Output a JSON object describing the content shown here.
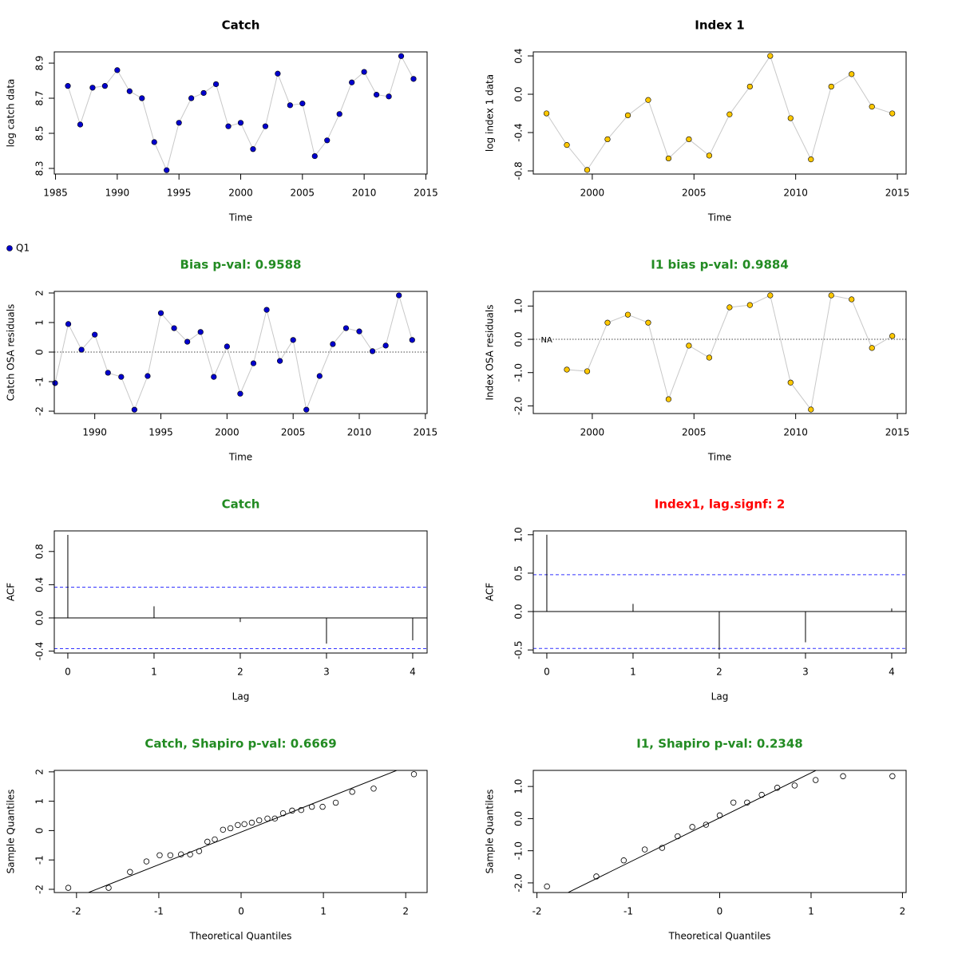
{
  "chart_data": [
    {
      "type": "line",
      "title": "Catch",
      "title_color": "#000000",
      "x_label": "Time",
      "y_label": "log catch data",
      "legend": "Q1",
      "color": "#0000cd",
      "x": [
        1986,
        1987,
        1988,
        1989,
        1990,
        1991,
        1992,
        1993,
        1994,
        1995,
        1996,
        1997,
        1998,
        1999,
        2000,
        2001,
        2002,
        2003,
        2004,
        2005,
        2006,
        2007,
        2008,
        2009,
        2010,
        2011,
        2012,
        2013,
        2014
      ],
      "values": [
        8.77,
        8.55,
        8.76,
        8.77,
        8.86,
        8.74,
        8.7,
        8.45,
        8.29,
        8.56,
        8.7,
        8.73,
        8.78,
        8.54,
        8.56,
        8.41,
        8.54,
        8.84,
        8.66,
        8.67,
        8.37,
        8.46,
        8.61,
        8.79,
        8.85,
        8.72,
        8.71,
        8.94,
        8.81
      ],
      "xlim": [
        1984.9,
        2015.1
      ],
      "ylim": [
        8.268,
        8.964
      ],
      "xticks": [
        1985,
        1990,
        1995,
        2000,
        2005,
        2010,
        2015
      ],
      "yticks": [
        8.3,
        8.5,
        8.7,
        8.9
      ]
    },
    {
      "type": "line",
      "title": "Index 1",
      "title_color": "#000000",
      "x_label": "Time",
      "y_label": "log index 1 data",
      "color": "#ffc800",
      "x": [
        1997.75,
        1998.75,
        1999.75,
        2000.75,
        2001.75,
        2002.75,
        2003.75,
        2004.75,
        2005.75,
        2006.75,
        2007.75,
        2008.75,
        2009.75,
        2010.75,
        2011.75,
        2012.75,
        2013.75,
        2014.75
      ],
      "values": [
        -0.2,
        -0.53,
        -0.79,
        -0.47,
        -0.22,
        -0.06,
        -0.67,
        -0.47,
        -0.64,
        -0.21,
        0.08,
        0.4,
        -0.25,
        -0.68,
        0.08,
        0.21,
        -0.13,
        -0.2
      ],
      "xlim": [
        1997.1,
        2015.43
      ],
      "ylim": [
        -0.833,
        0.442
      ],
      "xticks": [
        2000,
        2005,
        2010,
        2015
      ],
      "yticks": [
        -0.8,
        -0.4,
        {
          "value": 0,
          "label": "0.0"
        },
        0.4
      ]
    },
    {
      "type": "line",
      "title": "Bias p-val: 0.9588",
      "title_color": "#228b22",
      "x_label": "Time",
      "y_label": "Catch OSA residuals",
      "color": "#0000cd",
      "ref_line": 0,
      "x": [
        1987,
        1988,
        1989,
        1990,
        1991,
        1992,
        1993,
        1994,
        1995,
        1996,
        1997,
        1998,
        1999,
        2000,
        2001,
        2002,
        2003,
        2004,
        2005,
        2006,
        2007,
        2008,
        2009,
        2010,
        2011,
        2012,
        2013,
        2014
      ],
      "values": [
        -1.05,
        0.95,
        0.08,
        0.59,
        -0.7,
        -0.84,
        -1.95,
        -0.81,
        1.32,
        0.81,
        0.35,
        0.68,
        -0.84,
        0.19,
        -1.41,
        -0.38,
        1.43,
        -0.3,
        0.41,
        -1.95,
        -0.81,
        0.27,
        0.81,
        0.7,
        0.03,
        0.22,
        1.92,
        0.41
      ],
      "xlim": [
        1986.94,
        2015.13
      ],
      "ylim": [
        -2.08,
        2.054
      ],
      "xticks": [
        1990,
        1995,
        2000,
        2005,
        2010,
        2015
      ],
      "yticks": [
        -2,
        -1,
        0,
        1,
        2
      ]
    },
    {
      "type": "line",
      "title": "I1 bias p-val: 0.9884",
      "title_color": "#228b22",
      "x_label": "Time",
      "y_label": "Index OSA residuals",
      "color": "#ffc800",
      "ref_line": 0,
      "na_label": "NA",
      "x": [
        1997.75,
        1998.75,
        1999.75,
        2000.75,
        2001.75,
        2002.75,
        2003.75,
        2004.75,
        2005.75,
        2006.75,
        2007.75,
        2008.75,
        2009.75,
        2010.75,
        2011.75,
        2012.75,
        2013.75,
        2014.75
      ],
      "values": [
        null,
        -0.91,
        -0.96,
        0.5,
        0.74,
        0.5,
        -1.8,
        -0.19,
        -0.55,
        0.96,
        1.03,
        1.32,
        -1.3,
        -2.11,
        1.32,
        1.2,
        -0.26,
        0.1
      ],
      "xlim": [
        1997.1,
        2015.43
      ],
      "ylim": [
        -2.23,
        1.44
      ],
      "xticks": [
        2000,
        2005,
        2010,
        2015
      ],
      "yticks": [
        {
          "value": -2,
          "label": "-2.0"
        },
        {
          "value": -1,
          "label": "-1.0"
        },
        {
          "value": 0,
          "label": "0.0"
        },
        {
          "value": 1,
          "label": "1.0"
        }
      ]
    },
    {
      "type": "acf",
      "title": "Catch",
      "title_color": "#228b22",
      "x_label": "Lag",
      "y_label": "ACF",
      "conf_limit": 0.37,
      "x": [
        0,
        1,
        2,
        3,
        4
      ],
      "values": [
        1.0,
        0.14,
        -0.05,
        -0.31,
        -0.27
      ],
      "xlim": [
        -0.157,
        4.167
      ],
      "ylim": [
        -0.423,
        1.048
      ],
      "xticks": [
        0,
        1,
        2,
        3,
        4
      ],
      "yticks": [
        -0.4,
        {
          "value": 0,
          "label": "0.0"
        },
        0.4,
        0.8
      ]
    },
    {
      "type": "acf",
      "title": "Index1, lag.signf: 2",
      "title_color": "#ff0000",
      "x_label": "Lag",
      "y_label": "ACF",
      "conf_limit": 0.48,
      "x": [
        0,
        1,
        2,
        3,
        4
      ],
      "values": [
        1.0,
        0.1,
        -0.5,
        -0.4,
        0.04
      ],
      "xlim": [
        -0.157,
        4.167
      ],
      "ylim": [
        -0.54,
        1.05
      ],
      "xticks": [
        0,
        1,
        2,
        3,
        4
      ],
      "yticks": [
        -0.5,
        {
          "value": 0,
          "label": "0.0"
        },
        0.5,
        {
          "value": 1,
          "label": "1.0"
        }
      ]
    },
    {
      "type": "qq",
      "title": "Catch, Shapiro p-val: 0.6669",
      "title_color": "#228b22",
      "x_label": "Theoretical Quantiles",
      "y_label": "Sample Quantiles",
      "x": [
        -2.1,
        -1.61,
        -1.35,
        -1.15,
        -0.99,
        -0.86,
        -0.73,
        -0.62,
        -0.51,
        -0.41,
        -0.32,
        -0.22,
        -0.13,
        -0.04,
        0.04,
        0.13,
        0.22,
        0.32,
        0.41,
        0.51,
        0.62,
        0.73,
        0.86,
        0.99,
        1.15,
        1.35,
        1.61,
        2.1
      ],
      "values": [
        -1.95,
        -1.95,
        -1.41,
        -1.05,
        -0.84,
        -0.84,
        -0.81,
        -0.81,
        -0.7,
        -0.38,
        -0.3,
        0.03,
        0.08,
        0.19,
        0.22,
        0.27,
        0.35,
        0.41,
        0.41,
        0.59,
        0.68,
        0.7,
        0.81,
        0.81,
        0.95,
        1.32,
        1.43,
        1.92
      ],
      "qq_line": {
        "slope": 1.11,
        "intercept": -0.05
      },
      "xlim": [
        -2.27,
        2.26
      ],
      "ylim": [
        -2.11,
        2.05
      ],
      "xticks": [
        -2,
        -1,
        0,
        1,
        2
      ],
      "yticks": [
        -2,
        -1,
        0,
        1,
        2
      ]
    },
    {
      "type": "qq",
      "title": "I1, Shapiro p-val: 0.2348",
      "title_color": "#228b22",
      "x_label": "Theoretical Quantiles",
      "y_label": "Sample Quantiles",
      "x": [
        -1.89,
        -1.35,
        -1.05,
        -0.82,
        -0.63,
        -0.46,
        -0.3,
        -0.15,
        0,
        0.15,
        0.3,
        0.46,
        0.63,
        0.82,
        1.05,
        1.35,
        1.89
      ],
      "values": [
        -2.11,
        -1.8,
        -1.3,
        -0.96,
        -0.91,
        -0.55,
        -0.26,
        -0.19,
        0.1,
        0.5,
        0.5,
        0.74,
        0.96,
        1.03,
        1.2,
        1.32,
        1.32
      ],
      "qq_line": {
        "slope": 1.4,
        "intercept": 0.024
      },
      "xlim": [
        -2.04,
        2.04
      ],
      "ylim": [
        -2.3,
        1.5
      ],
      "xticks": [
        -2,
        -1,
        0,
        1,
        2
      ],
      "yticks": [
        {
          "value": -2,
          "label": "-2.0"
        },
        {
          "value": -1,
          "label": "-1.0"
        },
        {
          "value": 0,
          "label": "0.0"
        },
        {
          "value": 1,
          "label": "1.0"
        }
      ]
    }
  ]
}
